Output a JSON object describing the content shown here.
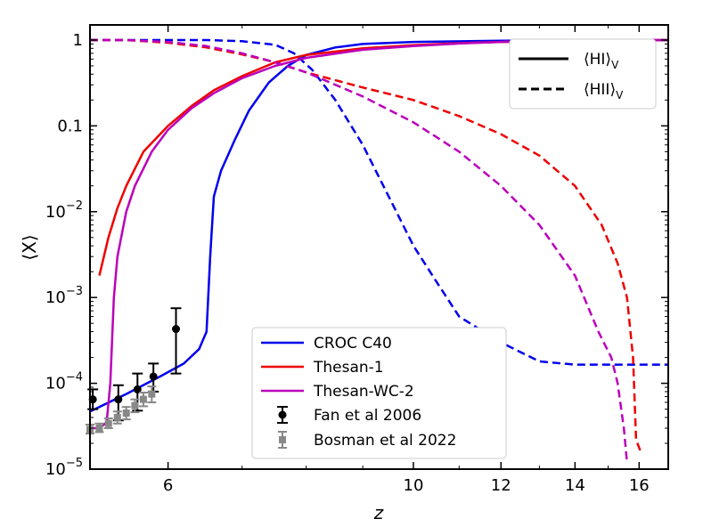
{
  "chart_data": {
    "type": "line",
    "xlabel": "z",
    "ylabel": "⟨X⟩",
    "xscale": "log",
    "yscale": "log",
    "xlim": [
      5.1,
      17
    ],
    "ylim": [
      1e-05,
      1.5
    ],
    "x_ticks": [
      6,
      10,
      12,
      14,
      16
    ],
    "x_tick_labels": [
      "6",
      "10",
      "12",
      "14",
      "16"
    ],
    "y_ticks": [
      1e-05,
      0.0001,
      0.001,
      0.01,
      0.1,
      1
    ],
    "y_tick_labels": [
      {
        "base": "10",
        "exp": "−5"
      },
      {
        "base": "10",
        "exp": "−4"
      },
      {
        "base": "10",
        "exp": "−3"
      },
      {
        "base": "10",
        "exp": "−2"
      },
      {
        "base": "0.1",
        "exp": ""
      },
      {
        "base": "1",
        "exp": ""
      }
    ],
    "style_legend": {
      "position": "top-right",
      "entries": [
        {
          "label": "⟨HI⟩",
          "sub": "V",
          "style": "solid"
        },
        {
          "label": "⟨HII⟩",
          "sub": "V",
          "style": "dashed"
        }
      ]
    },
    "series_legend": {
      "position": "bottom-center",
      "entries": [
        {
          "label": "CROC C40",
          "color": "#0000ee",
          "kind": "line"
        },
        {
          "label": "Thesan-1",
          "color": "#ee0000",
          "kind": "line"
        },
        {
          "label": "Thesan-WC-2",
          "color": "#bb00bb",
          "kind": "line"
        },
        {
          "label": "Fan et al 2006",
          "color": "#000000",
          "kind": "errorbar-circle"
        },
        {
          "label": "Bosman et al 2022",
          "color": "#888888",
          "kind": "errorbar-square"
        }
      ]
    },
    "series": [
      {
        "name": "CROC C40 HI",
        "color": "#0000ee",
        "style": "solid",
        "points": [
          [
            5.1,
            4.7e-05
          ],
          [
            5.5,
            7.5e-05
          ],
          [
            5.9,
            0.00012
          ],
          [
            6.2,
            0.00017
          ],
          [
            6.4,
            0.00025
          ],
          [
            6.5,
            0.0004
          ],
          [
            6.55,
            0.003
          ],
          [
            6.6,
            0.015
          ],
          [
            6.7,
            0.03
          ],
          [
            6.9,
            0.07
          ],
          [
            7.1,
            0.15
          ],
          [
            7.4,
            0.32
          ],
          [
            7.7,
            0.5
          ],
          [
            8.0,
            0.67
          ],
          [
            8.5,
            0.82
          ],
          [
            9.0,
            0.9
          ],
          [
            10,
            0.95
          ],
          [
            12,
            0.98
          ],
          [
            14,
            0.99
          ],
          [
            17,
            1.0
          ]
        ]
      },
      {
        "name": "CROC C40 HII",
        "color": "#0000ee",
        "style": "dashed",
        "points": [
          [
            5.1,
            1.0
          ],
          [
            6.5,
            1.0
          ],
          [
            7.0,
            0.97
          ],
          [
            7.5,
            0.88
          ],
          [
            7.8,
            0.7
          ],
          [
            8.1,
            0.45
          ],
          [
            8.5,
            0.2
          ],
          [
            9.0,
            0.06
          ],
          [
            9.5,
            0.015
          ],
          [
            10,
            0.004
          ],
          [
            10.5,
            0.0015
          ],
          [
            11,
            0.0006
          ],
          [
            12,
            0.0003
          ],
          [
            13,
            0.00018
          ],
          [
            14,
            0.000165
          ],
          [
            17,
            0.000165
          ]
        ]
      },
      {
        "name": "Thesan-1 HI",
        "color": "#ee0000",
        "style": "solid",
        "points": [
          [
            5.2,
            0.0018
          ],
          [
            5.25,
            0.003
          ],
          [
            5.3,
            0.005
          ],
          [
            5.4,
            0.011
          ],
          [
            5.5,
            0.02
          ],
          [
            5.7,
            0.05
          ],
          [
            6.0,
            0.1
          ],
          [
            6.3,
            0.17
          ],
          [
            6.6,
            0.26
          ],
          [
            7.0,
            0.38
          ],
          [
            7.5,
            0.55
          ],
          [
            8.0,
            0.67
          ],
          [
            9.0,
            0.8
          ],
          [
            10,
            0.87
          ],
          [
            11,
            0.92
          ],
          [
            12,
            0.95
          ],
          [
            13,
            0.97
          ],
          [
            14,
            0.98
          ],
          [
            15,
            0.99
          ],
          [
            17,
            1.0
          ]
        ]
      },
      {
        "name": "Thesan-1 HII",
        "color": "#ee0000",
        "style": "dashed",
        "points": [
          [
            5.1,
            1.0
          ],
          [
            5.5,
            1.0
          ],
          [
            6.0,
            0.93
          ],
          [
            6.5,
            0.82
          ],
          [
            7.0,
            0.68
          ],
          [
            7.5,
            0.55
          ],
          [
            8.0,
            0.42
          ],
          [
            9,
            0.28
          ],
          [
            10,
            0.2
          ],
          [
            11,
            0.13
          ],
          [
            12,
            0.08
          ],
          [
            13,
            0.045
          ],
          [
            14,
            0.02
          ],
          [
            14.8,
            0.007
          ],
          [
            15.3,
            0.0025
          ],
          [
            15.6,
            0.001
          ],
          [
            15.8,
            0.0002
          ],
          [
            15.9,
            2.2e-05
          ],
          [
            16.05,
            1.6e-05
          ]
        ]
      },
      {
        "name": "Thesan-WC-2 HI",
        "color": "#bb00bb",
        "style": "solid",
        "points": [
          [
            5.1,
            3e-05
          ],
          [
            5.2,
            3e-05
          ],
          [
            5.28,
            3.5e-05
          ],
          [
            5.32,
            0.0001
          ],
          [
            5.36,
            0.001
          ],
          [
            5.4,
            0.003
          ],
          [
            5.5,
            0.01
          ],
          [
            5.6,
            0.02
          ],
          [
            5.8,
            0.05
          ],
          [
            6.0,
            0.09
          ],
          [
            6.3,
            0.16
          ],
          [
            6.6,
            0.24
          ],
          [
            7.0,
            0.36
          ],
          [
            7.5,
            0.5
          ],
          [
            8.0,
            0.62
          ],
          [
            9,
            0.77
          ],
          [
            10,
            0.85
          ],
          [
            11,
            0.91
          ],
          [
            12,
            0.95
          ],
          [
            13,
            0.97
          ],
          [
            14,
            0.98
          ],
          [
            17,
            1.0
          ]
        ]
      },
      {
        "name": "Thesan-WC-2 HII",
        "color": "#bb00bb",
        "style": "dashed",
        "points": [
          [
            5.1,
            1.0
          ],
          [
            5.5,
            1.0
          ],
          [
            6.0,
            0.95
          ],
          [
            6.5,
            0.85
          ],
          [
            7.0,
            0.7
          ],
          [
            7.5,
            0.55
          ],
          [
            8.0,
            0.42
          ],
          [
            9,
            0.22
          ],
          [
            10,
            0.11
          ],
          [
            11,
            0.05
          ],
          [
            12,
            0.02
          ],
          [
            13,
            0.007
          ],
          [
            14,
            0.0018
          ],
          [
            14.7,
            0.0004
          ],
          [
            15.1,
            0.0002
          ],
          [
            15.3,
            0.0001
          ],
          [
            15.5,
            3e-05
          ],
          [
            15.6,
            1.2e-05
          ]
        ]
      }
    ],
    "observations": [
      {
        "name": "Fan et al 2006",
        "color": "#000000",
        "marker": "circle",
        "points": [
          {
            "z": 5.13,
            "y": 6.5e-05,
            "lo": 5e-05,
            "hi": 8.5e-05
          },
          {
            "z": 5.41,
            "y": 6.5e-05,
            "lo": 3.7e-05,
            "hi": 9.5e-05
          },
          {
            "z": 5.63,
            "y": 8.5e-05,
            "lo": 4.8e-05,
            "hi": 0.00013
          },
          {
            "z": 5.82,
            "y": 0.00012,
            "lo": 8e-05,
            "hi": 0.00017
          },
          {
            "z": 6.1,
            "y": 0.00043,
            "lo": 0.00013,
            "hi": 0.00075
          }
        ]
      },
      {
        "name": "Bosman et al 2022",
        "color": "#888888",
        "marker": "square",
        "points": [
          {
            "z": 5.1,
            "y": 2.9e-05,
            "lo": 2.6e-05,
            "hi": 3.3e-05
          },
          {
            "z": 5.2,
            "y": 3e-05,
            "lo": 2.7e-05,
            "hi": 3.4e-05
          },
          {
            "z": 5.3,
            "y": 3.4e-05,
            "lo": 3e-05,
            "hi": 3.9e-05
          },
          {
            "z": 5.4,
            "y": 4e-05,
            "lo": 3.4e-05,
            "hi": 4.7e-05
          },
          {
            "z": 5.5,
            "y": 4.5e-05,
            "lo": 3.8e-05,
            "hi": 5.3e-05
          },
          {
            "z": 5.6,
            "y": 5.5e-05,
            "lo": 4.6e-05,
            "hi": 6.5e-05
          },
          {
            "z": 5.7,
            "y": 6.5e-05,
            "lo": 5.4e-05,
            "hi": 7.8e-05
          },
          {
            "z": 5.8,
            "y": 7.5e-05,
            "lo": 6e-05,
            "hi": 9.2e-05
          }
        ]
      }
    ]
  }
}
